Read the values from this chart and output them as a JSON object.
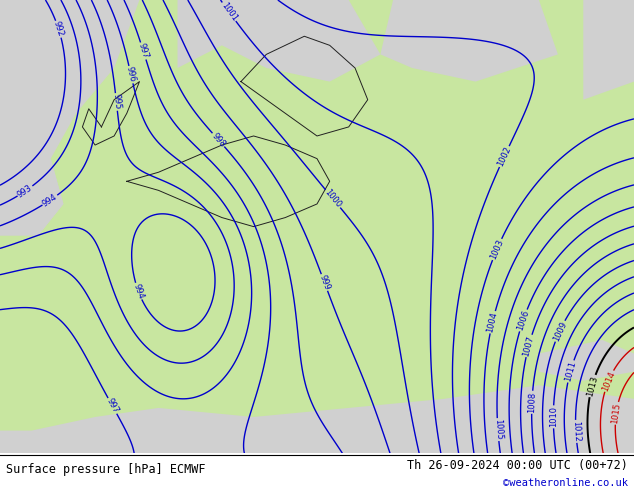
{
  "title_left": "Surface pressure [hPa] ECMWF",
  "title_right": "Th 26-09-2024 00:00 UTC (00+72)",
  "copyright": "©weatheronline.co.uk",
  "bg_color_land": "#c8e6a0",
  "bg_color_sea": "#d0d0d0",
  "contour_color_blue": "#0000cc",
  "contour_color_black": "#000000",
  "contour_color_red": "#cc0000",
  "footer_text_color": "#000000",
  "copyright_color": "#0000cc",
  "figsize": [
    6.34,
    4.9
  ],
  "dpi": 100,
  "border_color": "#222222",
  "blue_levels": [
    992,
    993,
    994,
    995,
    996,
    997,
    998,
    999,
    1000,
    1001,
    1002,
    1003,
    1004,
    1005,
    1006,
    1007,
    1008,
    1009,
    1010,
    1011,
    1012
  ],
  "black_levels": [
    1013
  ],
  "red_levels": [
    1014,
    1015
  ]
}
